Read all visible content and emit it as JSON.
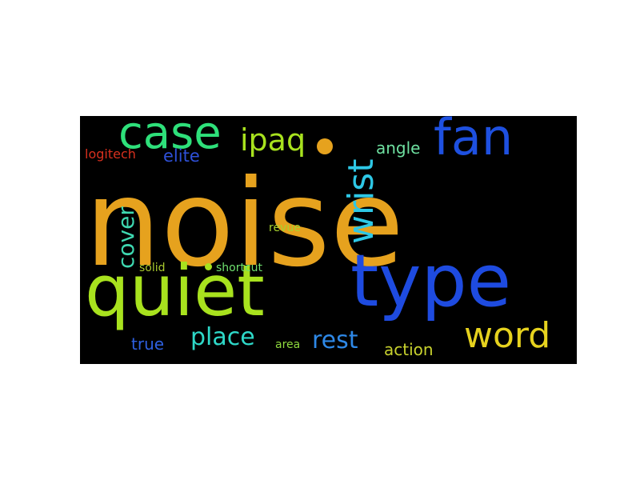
{
  "background_color": "#000000",
  "words": [
    {
      "id": "noise",
      "text": "noise",
      "color": "#E6A21E"
    },
    {
      "id": "quiet",
      "text": "quiet",
      "color": "#A8E21E"
    },
    {
      "id": "type",
      "text": "type",
      "color": "#1E4BE0"
    },
    {
      "id": "case",
      "text": "case",
      "color": "#2EE07A"
    },
    {
      "id": "fan",
      "text": "fan",
      "color": "#1E50E0"
    },
    {
      "id": "wrist",
      "text": "wrist",
      "color": "#2EC8E6"
    },
    {
      "id": "word",
      "text": "word",
      "color": "#E6D21E"
    },
    {
      "id": "ipaq",
      "text": "ipaq",
      "color": "#A8E21E"
    },
    {
      "id": "cover",
      "text": "cover",
      "color": "#3ED8B0"
    },
    {
      "id": "place",
      "text": "place",
      "color": "#2ED8C8"
    },
    {
      "id": "rest",
      "text": "rest",
      "color": "#2E88E6"
    },
    {
      "id": "angle",
      "text": "angle",
      "color": "#6EE0A0"
    },
    {
      "id": "elite",
      "text": "elite",
      "color": "#2E50D8"
    },
    {
      "id": "logitech",
      "text": "logitech",
      "color": "#D8301E"
    },
    {
      "id": "action",
      "text": "action",
      "color": "#C8D22E"
    },
    {
      "id": "true",
      "text": "true",
      "color": "#2E60E0"
    },
    {
      "id": "revue",
      "text": "revue",
      "color": "#A8D22E"
    },
    {
      "id": "solid",
      "text": "solid",
      "color": "#A8C82E"
    },
    {
      "id": "shortcut",
      "text": "shortcut",
      "color": "#6EE06E"
    },
    {
      "id": "area",
      "text": "area",
      "color": "#8ED83E"
    }
  ],
  "dots": [
    {
      "id": "dot-large",
      "color": "#E6A21E"
    },
    {
      "id": "dot-small",
      "color": "#A8E21E"
    }
  ]
}
